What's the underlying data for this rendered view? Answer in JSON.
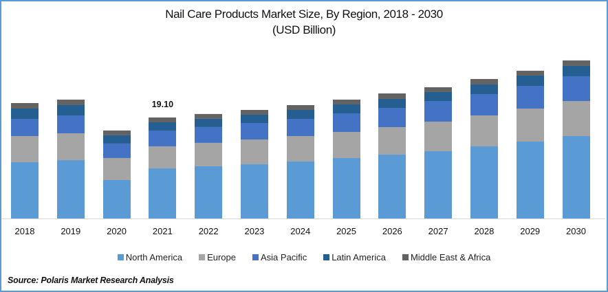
{
  "chart_data": {
    "type": "bar",
    "stacked": true,
    "title": "Nail Care Products Market Size, By Region, 2018 - 2030",
    "subtitle": "(USD Billion)",
    "xlabel": "",
    "ylabel": "",
    "categories": [
      "2018",
      "2019",
      "2020",
      "2021",
      "2022",
      "2023",
      "2024",
      "2025",
      "2026",
      "2027",
      "2028",
      "2029",
      "2030"
    ],
    "series": [
      {
        "name": "North America",
        "color": "#5B9BD5",
        "values": [
          10.65,
          11.04,
          7.28,
          9.48,
          9.88,
          10.26,
          10.78,
          11.43,
          12.08,
          12.73,
          13.64,
          14.55,
          15.59
        ]
      },
      {
        "name": "Europe",
        "color": "#A5A5A5",
        "values": [
          4.94,
          5.07,
          4.16,
          4.16,
          4.42,
          4.68,
          4.81,
          4.94,
          5.2,
          5.59,
          5.85,
          6.24,
          6.63
        ]
      },
      {
        "name": "Asia Pacific",
        "color": "#4472C4",
        "values": [
          3.25,
          3.38,
          2.73,
          2.99,
          2.99,
          3.12,
          3.25,
          3.51,
          3.64,
          3.9,
          4.03,
          4.29,
          4.68
        ]
      },
      {
        "name": "Latin America",
        "color": "#255E91",
        "values": [
          1.95,
          1.95,
          1.56,
          1.56,
          1.56,
          1.56,
          1.69,
          1.69,
          1.69,
          1.69,
          1.82,
          1.95,
          1.95
        ]
      },
      {
        "name": "Middle East & Africa",
        "color": "#636363",
        "values": [
          1.04,
          1.04,
          0.91,
          0.91,
          0.91,
          0.91,
          0.91,
          0.91,
          1.04,
          0.91,
          1.04,
          0.91,
          1.04
        ]
      }
    ],
    "annotations": [
      {
        "category": "2021",
        "text": "19.10"
      }
    ],
    "ylim": [
      0,
      32
    ],
    "grid": false,
    "y_axis_visible": false,
    "legend_position": "bottom"
  },
  "source": "Source: Polaris  Market Research Analysis"
}
